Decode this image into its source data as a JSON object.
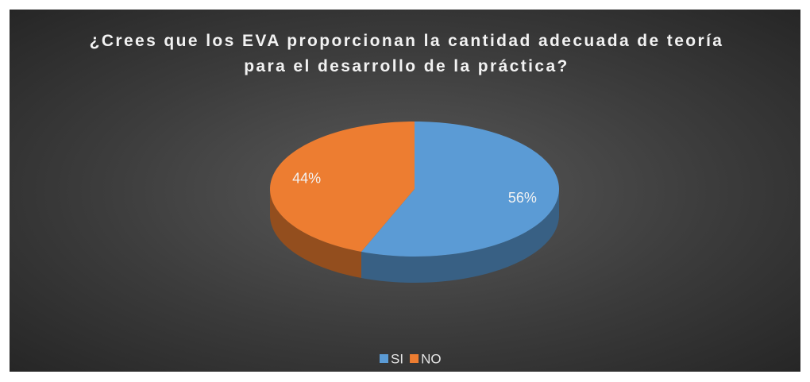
{
  "chart_data": {
    "type": "pie3d",
    "title": "¿Crees que los EVA proporcionan la cantidad adecuada de teoría para el desarrollo de la práctica?",
    "categories": [
      "SI",
      "NO"
    ],
    "values": [
      56,
      44
    ],
    "value_labels": [
      "56%",
      "44%"
    ],
    "colors": [
      "#5b9bd5",
      "#ed7d31"
    ],
    "legend": "bottom"
  }
}
